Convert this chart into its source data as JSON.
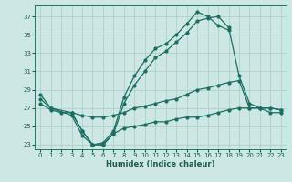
{
  "xlabel": "Humidex (Indice chaleur)",
  "bg_color": "#cde8e4",
  "grid_color": "#b0d0cc",
  "line_color": "#1a6e62",
  "ylim": [
    22.5,
    38.2
  ],
  "xlim": [
    -0.5,
    23.5
  ],
  "yticks": [
    23,
    25,
    27,
    29,
    31,
    33,
    35,
    37
  ],
  "xticks": [
    0,
    1,
    2,
    3,
    4,
    5,
    6,
    7,
    8,
    9,
    10,
    11,
    12,
    13,
    14,
    15,
    16,
    17,
    18,
    19,
    20,
    21,
    22,
    23
  ],
  "line_upper_x": [
    0,
    1,
    3,
    4,
    5,
    6,
    7,
    8,
    9,
    10,
    11,
    12,
    13,
    14,
    15,
    16,
    17,
    18
  ],
  "line_upper_y": [
    28.5,
    27.0,
    26.5,
    24.5,
    23.0,
    23.2,
    24.5,
    28.2,
    30.5,
    32.2,
    33.5,
    34.0,
    35.0,
    36.2,
    37.5,
    37.0,
    36.0,
    35.5
  ],
  "line_mid_x": [
    0,
    1,
    3,
    4,
    5,
    6,
    7,
    8,
    9,
    10,
    11,
    12,
    13,
    14,
    15,
    16,
    17,
    18,
    19,
    20,
    21,
    22,
    23
  ],
  "line_mid_y": [
    28.0,
    27.0,
    26.2,
    24.0,
    23.0,
    23.0,
    24.2,
    27.5,
    29.5,
    31.0,
    32.5,
    33.2,
    34.2,
    35.2,
    36.5,
    36.8,
    37.0,
    35.8,
    30.5,
    27.5,
    27.0,
    26.5,
    26.5
  ],
  "line_flat_x": [
    0,
    1,
    2,
    3,
    4,
    5,
    6,
    7,
    8,
    9,
    10,
    11,
    12,
    13,
    14,
    15,
    16,
    17,
    18,
    19,
    20,
    21,
    22,
    23
  ],
  "line_flat_y": [
    27.5,
    26.8,
    26.5,
    26.5,
    26.2,
    26.0,
    26.0,
    26.2,
    26.5,
    27.0,
    27.2,
    27.5,
    27.8,
    28.0,
    28.5,
    29.0,
    29.2,
    29.5,
    29.8,
    30.0,
    27.0,
    27.0,
    27.0,
    26.8
  ],
  "line_bot_x": [
    3,
    4,
    5,
    6,
    7,
    8,
    9,
    10,
    11,
    12,
    13,
    14,
    15,
    16,
    17,
    18,
    19,
    20,
    21,
    22,
    23
  ],
  "line_bot_y": [
    26.5,
    24.5,
    23.0,
    23.0,
    24.2,
    24.8,
    25.0,
    25.2,
    25.5,
    25.5,
    25.8,
    26.0,
    26.0,
    26.2,
    26.5,
    26.8,
    27.0,
    27.0,
    27.0,
    27.0,
    26.8
  ]
}
